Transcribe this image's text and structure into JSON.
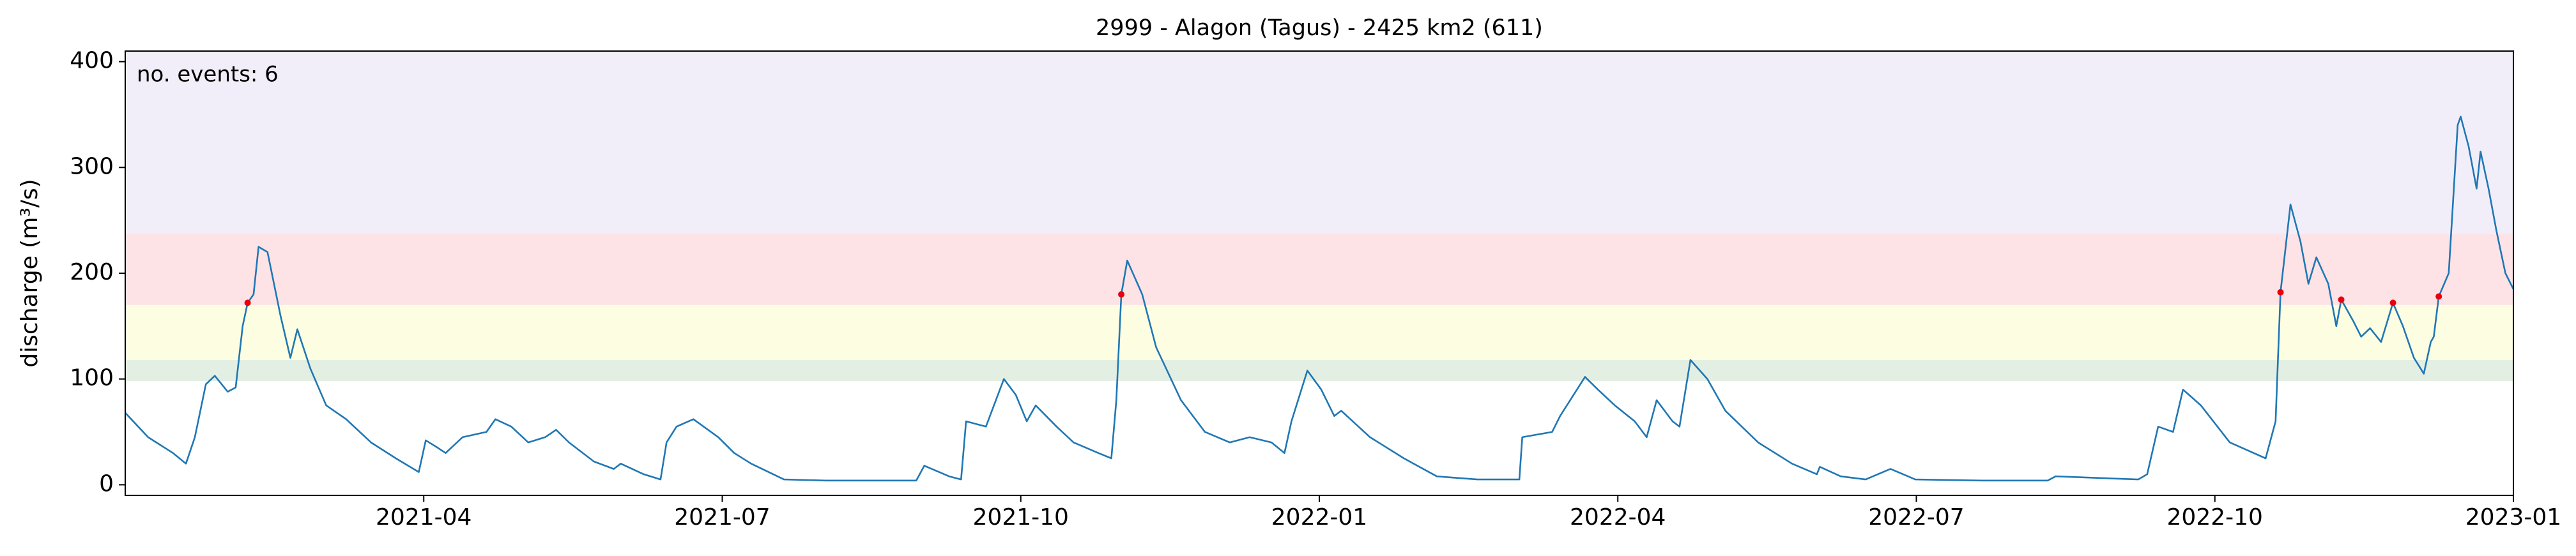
{
  "chart_data": {
    "type": "line",
    "title": "2999 - Alagon (Tagus) - 2425 km2 (611)",
    "y_label": "discharge (m³/s)",
    "annotation": "no. events: 6",
    "color": "#1f77b4",
    "x": [
      0,
      0.23,
      0.48,
      0.61,
      0.7,
      0.81,
      0.9,
      1.03,
      1.11,
      1.18,
      1.23,
      1.29,
      1.34,
      1.43,
      1.56,
      1.66,
      1.73,
      1.86,
      2.02,
      2.22,
      2.47,
      2.72,
      2.95,
      3.02,
      3.14,
      3.22,
      3.39,
      3.63,
      3.72,
      3.88,
      4.05,
      4.22,
      4.33,
      4.46,
      4.71,
      4.91,
      4.98,
      5.21,
      5.38,
      5.44,
      5.54,
      5.71,
      5.96,
      6.12,
      6.29,
      6.62,
      7.04,
      7.54,
      7.95,
      8.03,
      8.28,
      8.4,
      8.45,
      8.65,
      8.83,
      8.95,
      9.06,
      9.15,
      9.36,
      9.53,
      9.78,
      9.91,
      9.96,
      10.01,
      10.07,
      10.22,
      10.36,
      10.61,
      10.85,
      11.1,
      11.3,
      11.52,
      11.65,
      11.72,
      11.88,
      12.02,
      12.15,
      12.22,
      12.51,
      12.85,
      13.18,
      13.59,
      14.01,
      14.04,
      14.34,
      14.42,
      14.67,
      14.8,
      14.97,
      15.17,
      15.29,
      15.39,
      15.55,
      15.62,
      15.73,
      15.9,
      16.08,
      16.41,
      16.75,
      17,
      17.03,
      17.24,
      17.49,
      17.74,
      17.99,
      18.66,
      19.32,
      19.4,
      20.23,
      20.32,
      20.43,
      20.58,
      20.68,
      20.86,
      21.15,
      21.39,
      21.51,
      21.61,
      21.66,
      21.76,
      21.86,
      21.94,
      22.02,
      22.14,
      22.22,
      22.27,
      22.39,
      22.47,
      22.56,
      22.67,
      22.79,
      22.89,
      23,
      23.1,
      23.17,
      23.2,
      23.25,
      23.35,
      23.44,
      23.47,
      23.55,
      23.63,
      23.67,
      23.75,
      23.83,
      23.92,
      24
    ],
    "values": [
      68,
      45,
      30,
      20,
      45,
      95,
      103,
      88,
      92,
      150,
      172,
      180,
      225,
      220,
      160,
      120,
      147,
      110,
      75,
      62,
      40,
      25,
      12,
      42,
      35,
      30,
      45,
      50,
      62,
      55,
      40,
      45,
      52,
      40,
      22,
      15,
      20,
      10,
      5,
      40,
      55,
      62,
      45,
      30,
      20,
      5,
      4,
      4,
      4,
      18,
      8,
      5,
      60,
      55,
      100,
      85,
      60,
      75,
      55,
      40,
      30,
      25,
      80,
      180,
      212,
      180,
      130,
      80,
      50,
      40,
      45,
      40,
      30,
      60,
      108,
      90,
      65,
      70,
      45,
      25,
      8,
      5,
      5,
      45,
      50,
      65,
      102,
      90,
      75,
      60,
      45,
      80,
      60,
      55,
      118,
      100,
      70,
      40,
      20,
      10,
      17,
      8,
      5,
      15,
      5,
      4,
      4,
      8,
      5,
      10,
      55,
      50,
      90,
      75,
      40,
      30,
      25,
      60,
      182,
      265,
      230,
      190,
      215,
      190,
      150,
      175,
      155,
      140,
      148,
      135,
      172,
      150,
      120,
      105,
      135,
      140,
      178,
      200,
      340,
      348,
      320,
      280,
      315,
      280,
      240,
      200,
      185
    ],
    "events": {
      "color": "#e8000b",
      "x": [
        1.23,
        10.01,
        21.66,
        22.27,
        22.79,
        23.25
      ],
      "values": [
        172,
        180,
        182,
        175,
        172,
        178
      ]
    },
    "bands": [
      {
        "range": [
          98,
          118
        ],
        "color": "#e3efe3"
      },
      {
        "range": [
          118,
          170
        ],
        "color": "#fdfde2"
      },
      {
        "range": [
          170,
          237
        ],
        "color": "#fde2e6"
      },
      {
        "range": [
          237,
          410
        ],
        "color": "#f1eef9"
      }
    ],
    "xlim": [
      0,
      24
    ],
    "xticks": [
      {
        "value": 3,
        "label": "2021-04"
      },
      {
        "value": 6,
        "label": "2021-07"
      },
      {
        "value": 9,
        "label": "2021-10"
      },
      {
        "value": 12,
        "label": "2022-01"
      },
      {
        "value": 15,
        "label": "2022-04"
      },
      {
        "value": 18,
        "label": "2022-07"
      },
      {
        "value": 21,
        "label": "2022-10"
      },
      {
        "value": 24,
        "label": "2023-01"
      }
    ],
    "ylim": [
      -10,
      410
    ],
    "yticks": [
      0,
      100,
      200,
      300,
      400
    ]
  }
}
